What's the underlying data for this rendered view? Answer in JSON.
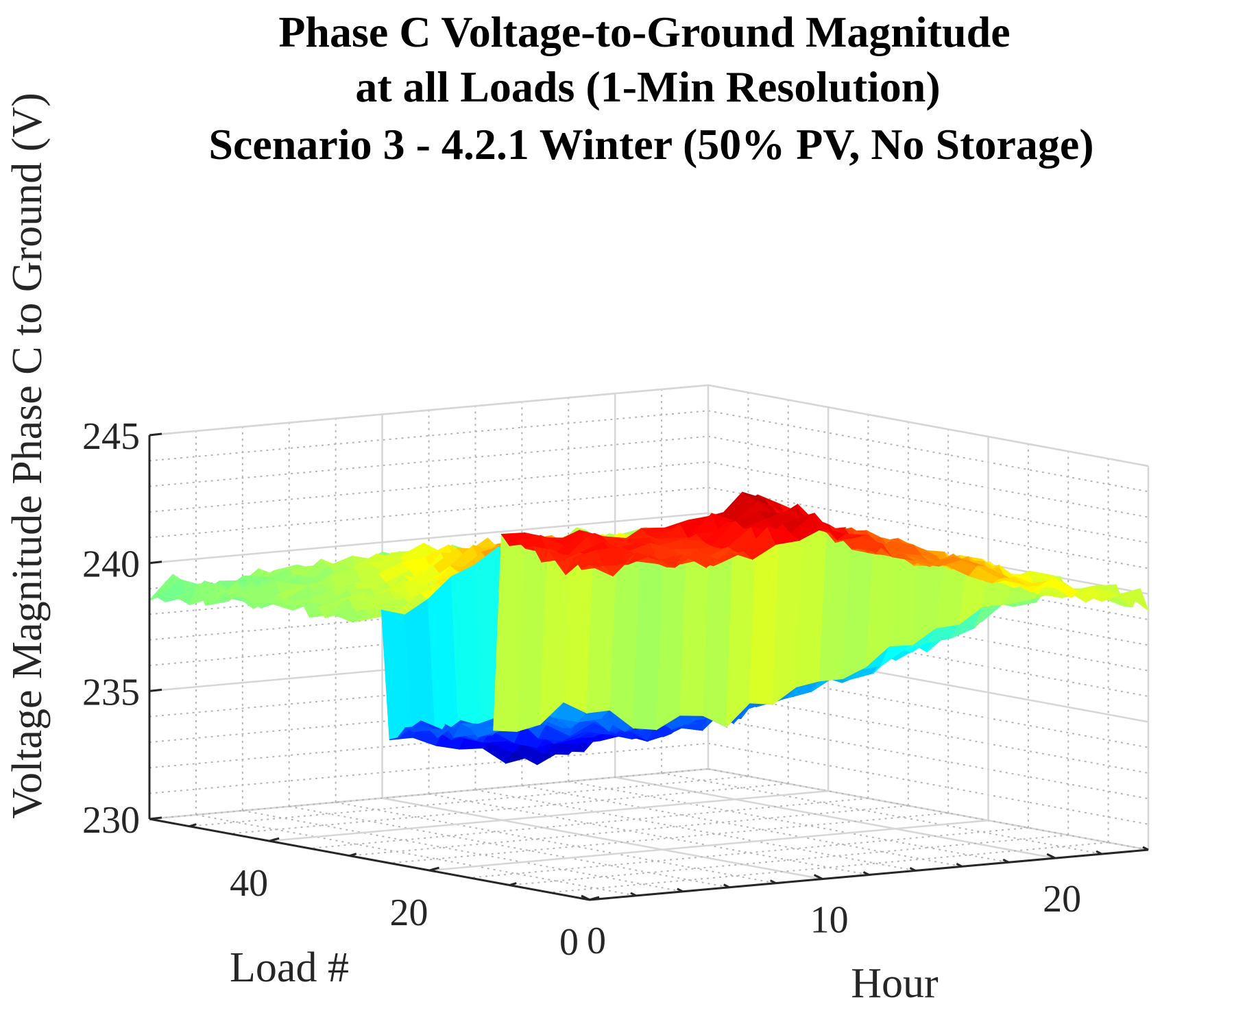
{
  "chart_data": {
    "type": "surface",
    "title": [
      "Phase C Voltage-to-Ground Magnitude",
      "at all Loads (1-Min Resolution)",
      "Scenario 3 - 4.2.1 Winter (50% PV, No Storage)"
    ],
    "xlabel": "Hour",
    "ylabel": "Load #",
    "zlabel": "Voltage Magnitude Phase C to Ground (V)",
    "x_ticks": [
      "0",
      "10",
      "20"
    ],
    "y_ticks": [
      "0",
      "20",
      "40"
    ],
    "z_ticks": [
      "230",
      "235",
      "240",
      "245"
    ],
    "xlim": [
      0,
      24
    ],
    "ylim": [
      0,
      55
    ],
    "zlim": [
      230,
      245
    ],
    "colormap": "jet",
    "clim": [
      233,
      245
    ],
    "grid": true,
    "minor_grid": true,
    "hour_samples": [
      0,
      1,
      2,
      3,
      4,
      5,
      6,
      7,
      8,
      9,
      10,
      11,
      12,
      13,
      14,
      15,
      16,
      17,
      18,
      19,
      20,
      21,
      22,
      23,
      24
    ],
    "loads": [
      {
        "load": 55,
        "voltage": [
          239.0,
          239.1,
          238.9,
          239.0,
          239.1,
          239.0,
          239.2,
          239.1,
          239.0,
          239.1,
          239.2,
          239.0,
          239.1,
          239.2,
          239.0,
          239.1,
          239.3,
          239.4,
          239.5,
          239.3,
          239.2,
          239.4,
          239.3,
          239.2,
          239.1
        ]
      },
      {
        "load": 40,
        "voltage": [
          239.2,
          239.3,
          239.4,
          239.3,
          239.6,
          239.9,
          240.2,
          240.6,
          240.8,
          240.5,
          240.3,
          240.0,
          239.8,
          239.9,
          240.2,
          240.4,
          240.3,
          240.1,
          240.0,
          239.9,
          239.8,
          239.9,
          239.7,
          239.6,
          239.5
        ]
      },
      {
        "load": 26,
        "voltage": [
          239.4,
          239.6,
          240.0,
          240.5,
          241.0,
          241.6,
          241.9,
          242.1,
          241.8,
          241.5,
          241.2,
          240.8,
          240.4,
          240.2,
          240.5,
          240.8,
          241.0,
          240.9,
          240.7,
          240.6,
          240.4,
          240.2,
          240.0,
          239.8,
          239.7
        ]
      },
      {
        "load": 25,
        "voltage": [
          235.0,
          235.0,
          234.8,
          234.5,
          234.2,
          233.9,
          233.7,
          233.8,
          234.0,
          234.2,
          234.5,
          234.7,
          234.9,
          235.1,
          235.2,
          235.3,
          235.4,
          235.5,
          235.6,
          235.8,
          236.0,
          236.4,
          236.8,
          237.3,
          237.8
        ]
      },
      {
        "load": 12,
        "voltage": [
          236.0,
          236.2,
          236.3,
          236.4,
          236.3,
          236.1,
          235.9,
          235.7,
          235.5,
          235.4,
          235.5,
          235.7,
          235.9,
          236.2,
          236.5,
          236.8,
          237.1,
          237.4,
          237.7,
          238.0,
          238.3,
          238.7,
          239.0,
          239.3,
          239.5
        ]
      },
      {
        "load": 11,
        "voltage": [
          243.5,
          243.6,
          243.5,
          243.4,
          243.3,
          243.2,
          243.1,
          243.3,
          243.6,
          243.9,
          244.2,
          244.0,
          243.4,
          243.0,
          242.6,
          242.3,
          242.0,
          241.7,
          241.4,
          241.1,
          240.8,
          240.5,
          240.2,
          240.0,
          239.8
        ]
      },
      {
        "load": 0,
        "voltage": [
          242.8,
          243.0,
          243.1,
          243.0,
          242.9,
          242.8,
          242.8,
          243.1,
          243.4,
          243.6,
          243.8,
          243.5,
          243.0,
          242.6,
          242.3,
          242.0,
          241.7,
          241.4,
          241.1,
          240.8,
          240.6,
          240.3,
          240.1,
          239.9,
          239.7
        ]
      }
    ]
  }
}
